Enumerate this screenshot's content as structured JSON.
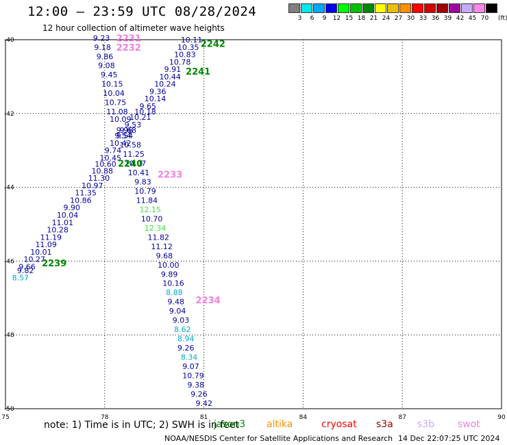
{
  "header": {
    "title": "12:00 – 23:59 UTC 08/28/2024",
    "subtitle": "12 hour collection of altimeter wave heights"
  },
  "legend": {
    "unit": "(ft)",
    "bins": [
      {
        "label": "3",
        "color": "#808080"
      },
      {
        "label": "6",
        "color": "#00e8e8"
      },
      {
        "label": "9",
        "color": "#00a8ff"
      },
      {
        "label": "12",
        "color": "#0000e8"
      },
      {
        "label": "15",
        "color": "#00ff00"
      },
      {
        "label": "18",
        "color": "#00c000"
      },
      {
        "label": "21",
        "color": "#008800"
      },
      {
        "label": "24",
        "color": "#ffff00"
      },
      {
        "label": "27",
        "color": "#e8c000"
      },
      {
        "label": "30",
        "color": "#ff9000"
      },
      {
        "label": "33",
        "color": "#ff0000"
      },
      {
        "label": "36",
        "color": "#d00000"
      },
      {
        "label": "39",
        "color": "#a00000"
      },
      {
        "label": "42",
        "color": "#a000a0"
      },
      {
        "label": "45",
        "color": "#c8a8f8"
      },
      {
        "label": "70",
        "color": "#ff88e8"
      },
      {
        "label": "",
        "color": "#000000"
      }
    ]
  },
  "map": {
    "lon_range": [
      75,
      90
    ],
    "lat_range": [
      -50,
      -40
    ],
    "x_ticks": [
      "75",
      "78",
      "81",
      "84",
      "87",
      "90"
    ],
    "y_ticks": [
      "-40",
      "-42",
      "-44",
      "-46",
      "-48",
      "-50"
    ],
    "tracks": [
      {
        "id": "2231",
        "color": "#f080e0",
        "lon": 78.35,
        "lat": -39.95
      },
      {
        "id": "2232",
        "color": "#f080e0",
        "lon": 78.35,
        "lat": -40.2
      },
      {
        "id": "2242",
        "color": "#008800",
        "lon": 80.9,
        "lat": -40.1
      },
      {
        "id": "2241",
        "color": "#008800",
        "lon": 80.45,
        "lat": -40.85
      },
      {
        "id": "2240",
        "color": "#008800",
        "lon": 78.4,
        "lat": -43.35
      },
      {
        "id": "2233",
        "color": "#f080e0",
        "lon": 79.6,
        "lat": -43.65
      },
      {
        "id": "2239",
        "color": "#008800",
        "lon": 76.1,
        "lat": -46.05
      },
      {
        "id": "2234",
        "color": "#f080e0",
        "lon": 80.75,
        "lat": -47.05
      }
    ],
    "readings": [
      {
        "v": "9.23",
        "color": "#0000a0",
        "lon": 77.65,
        "lat": -39.95
      },
      {
        "v": "9.18",
        "color": "#0000a0",
        "lon": 77.68,
        "lat": -40.2
      },
      {
        "v": "9.86",
        "color": "#0000a0",
        "lon": 77.75,
        "lat": -40.45
      },
      {
        "v": "9.08",
        "color": "#0000a0",
        "lon": 77.8,
        "lat": -40.7
      },
      {
        "v": "9.45",
        "color": "#0000a0",
        "lon": 77.88,
        "lat": -40.95
      },
      {
        "v": "10.15",
        "color": "#0000a0",
        "lon": 77.9,
        "lat": -41.2
      },
      {
        "v": "10.04",
        "color": "#0000a0",
        "lon": 77.95,
        "lat": -41.45
      },
      {
        "v": "10.75",
        "color": "#0000a0",
        "lon": 78.0,
        "lat": -41.7
      },
      {
        "v": "11.08",
        "color": "#0000a0",
        "lon": 78.05,
        "lat": -41.95
      },
      {
        "v": "10.09",
        "color": "#0000a0",
        "lon": 78.15,
        "lat": -42.15
      },
      {
        "v": "9.96",
        "color": "#0000a0",
        "lon": 78.35,
        "lat": -42.45
      },
      {
        "v": "9.54",
        "color": "#0000a0",
        "lon": 78.35,
        "lat": -42.6
      },
      {
        "v": "10.42",
        "color": "#0000a0",
        "lon": 78.15,
        "lat": -42.8
      },
      {
        "v": "9.74",
        "color": "#0000a0",
        "lon": 78.0,
        "lat": -43.0
      },
      {
        "v": "10.45",
        "color": "#0000a0",
        "lon": 77.85,
        "lat": -43.2
      },
      {
        "v": "10.60",
        "color": "#0000a0",
        "lon": 77.7,
        "lat": -43.37
      },
      {
        "v": "10.88",
        "color": "#0000a0",
        "lon": 77.6,
        "lat": -43.55
      },
      {
        "v": "11.30",
        "color": "#0000a0",
        "lon": 77.5,
        "lat": -43.75
      },
      {
        "v": "10.97",
        "color": "#0000a0",
        "lon": 77.3,
        "lat": -43.95
      },
      {
        "v": "11.35",
        "color": "#0000a0",
        "lon": 77.1,
        "lat": -44.15
      },
      {
        "v": "10.86",
        "color": "#0000a0",
        "lon": 76.95,
        "lat": -44.35
      },
      {
        "v": "9.90",
        "color": "#0000a0",
        "lon": 76.75,
        "lat": -44.55
      },
      {
        "v": "10.04",
        "color": "#0000a0",
        "lon": 76.55,
        "lat": -44.75
      },
      {
        "v": "11.01",
        "color": "#0000a0",
        "lon": 76.4,
        "lat": -44.95
      },
      {
        "v": "10.28",
        "color": "#0000a0",
        "lon": 76.25,
        "lat": -45.15
      },
      {
        "v": "11.19",
        "color": "#0000a0",
        "lon": 76.05,
        "lat": -45.35
      },
      {
        "v": "11.09",
        "color": "#0000a0",
        "lon": 75.9,
        "lat": -45.55
      },
      {
        "v": "10.01",
        "color": "#0000a0",
        "lon": 75.75,
        "lat": -45.75
      },
      {
        "v": "10.27",
        "color": "#0000a0",
        "lon": 75.55,
        "lat": -45.95
      },
      {
        "v": "9.66",
        "color": "#0000a0",
        "lon": 75.4,
        "lat": -46.15
      },
      {
        "v": "9.82",
        "color": "#0000a0",
        "lon": 75.35,
        "lat": -46.25
      },
      {
        "v": "8.57",
        "color": "#00a8d0",
        "lon": 75.2,
        "lat": -46.45
      },
      {
        "v": "10.11",
        "color": "#0000a0",
        "lon": 80.3,
        "lat": -40.0
      },
      {
        "v": "10.35",
        "color": "#0000a0",
        "lon": 80.2,
        "lat": -40.2
      },
      {
        "v": "10.83",
        "color": "#0000a0",
        "lon": 80.1,
        "lat": -40.4
      },
      {
        "v": "10.78",
        "color": "#0000a0",
        "lon": 79.95,
        "lat": -40.6
      },
      {
        "v": "9.91",
        "color": "#0000a0",
        "lon": 79.8,
        "lat": -40.8
      },
      {
        "v": "10.44",
        "color": "#0000a0",
        "lon": 79.65,
        "lat": -41.0
      },
      {
        "v": "10.24",
        "color": "#0000a0",
        "lon": 79.5,
        "lat": -41.2
      },
      {
        "v": "9.36",
        "color": "#0000a0",
        "lon": 79.35,
        "lat": -41.4
      },
      {
        "v": "10.14",
        "color": "#0000a0",
        "lon": 79.2,
        "lat": -41.6
      },
      {
        "v": "9.65",
        "color": "#0000a0",
        "lon": 79.05,
        "lat": -41.8
      },
      {
        "v": "10.18",
        "color": "#0000a0",
        "lon": 78.9,
        "lat": -41.95
      },
      {
        "v": "10.21",
        "color": "#0000a0",
        "lon": 78.75,
        "lat": -42.1
      },
      {
        "v": "9.53",
        "color": "#0000a0",
        "lon": 78.6,
        "lat": -42.3
      },
      {
        "v": "9.68",
        "color": "#0000a0",
        "lon": 78.45,
        "lat": -42.45
      },
      {
        "v": "9.54",
        "color": "#0000a0",
        "lon": 78.3,
        "lat": -42.6
      },
      {
        "v": "10.58",
        "color": "#0000a0",
        "lon": 78.45,
        "lat": -42.85
      },
      {
        "v": "11.25",
        "color": "#0000a0",
        "lon": 78.55,
        "lat": -43.1
      },
      {
        "v": "10.07",
        "color": "#0000a0",
        "lon": 78.6,
        "lat": -43.35
      },
      {
        "v": "10.41",
        "color": "#0000a0",
        "lon": 78.7,
        "lat": -43.6
      },
      {
        "v": "9.83",
        "color": "#0000a0",
        "lon": 78.9,
        "lat": -43.85
      },
      {
        "v": "10.79",
        "color": "#0000a0",
        "lon": 78.9,
        "lat": -44.1
      },
      {
        "v": "11.84",
        "color": "#0000a0",
        "lon": 78.95,
        "lat": -44.35
      },
      {
        "v": "12.15",
        "color": "#40e040",
        "lon": 79.05,
        "lat": -44.6
      },
      {
        "v": "10.70",
        "color": "#0000a0",
        "lon": 79.1,
        "lat": -44.85
      },
      {
        "v": "12.34",
        "color": "#40e040",
        "lon": 79.2,
        "lat": -45.1
      },
      {
        "v": "11.82",
        "color": "#0000a0",
        "lon": 79.3,
        "lat": -45.35
      },
      {
        "v": "11.12",
        "color": "#0000a0",
        "lon": 79.4,
        "lat": -45.6
      },
      {
        "v": "9.68",
        "color": "#0000a0",
        "lon": 79.55,
        "lat": -45.85
      },
      {
        "v": "10.00",
        "color": "#0000a0",
        "lon": 79.6,
        "lat": -46.1
      },
      {
        "v": "9.89",
        "color": "#0000a0",
        "lon": 79.7,
        "lat": -46.35
      },
      {
        "v": "10.16",
        "color": "#0000a0",
        "lon": 79.75,
        "lat": -46.6
      },
      {
        "v": "8.88",
        "color": "#00a8d0",
        "lon": 79.85,
        "lat": -46.85
      },
      {
        "v": "9.48",
        "color": "#0000a0",
        "lon": 79.9,
        "lat": -47.1
      },
      {
        "v": "9.04",
        "color": "#0000a0",
        "lon": 79.95,
        "lat": -47.35
      },
      {
        "v": "9.03",
        "color": "#0000a0",
        "lon": 80.05,
        "lat": -47.6
      },
      {
        "v": "8.62",
        "color": "#00a8d0",
        "lon": 80.1,
        "lat": -47.85
      },
      {
        "v": "8.94",
        "color": "#00a8d0",
        "lon": 80.2,
        "lat": -48.1
      },
      {
        "v": "9.26",
        "color": "#0000a0",
        "lon": 80.2,
        "lat": -48.35
      },
      {
        "v": "8.34",
        "color": "#00a8d0",
        "lon": 80.3,
        "lat": -48.6
      },
      {
        "v": "9.07",
        "color": "#0000a0",
        "lon": 80.35,
        "lat": -48.85
      },
      {
        "v": "10.79",
        "color": "#0000a0",
        "lon": 80.35,
        "lat": -49.1
      },
      {
        "v": "9.38",
        "color": "#0000a0",
        "lon": 80.5,
        "lat": -49.35
      },
      {
        "v": "9.26",
        "color": "#0000a0",
        "lon": 80.6,
        "lat": -49.6
      },
      {
        "v": "9.42",
        "color": "#0000a0",
        "lon": 80.75,
        "lat": -49.85
      }
    ]
  },
  "footer": {
    "note": "note: 1) Time is in UTC; 2) SWH is in feet",
    "satellites": [
      {
        "name": "jason3",
        "color": "#008800"
      },
      {
        "name": "altika",
        "color": "#ff9000"
      },
      {
        "name": "cryosat",
        "color": "#ff0000"
      },
      {
        "name": "s3a",
        "color": "#a00000"
      },
      {
        "name": "s3b",
        "color": "#c8a8f8"
      },
      {
        "name": "swot",
        "color": "#f080e0"
      }
    ],
    "credit": "NOAA/NESDIS Center for Satellite Applications and Research",
    "generated": "14 Dec 22:07:25 UTC 2024"
  }
}
